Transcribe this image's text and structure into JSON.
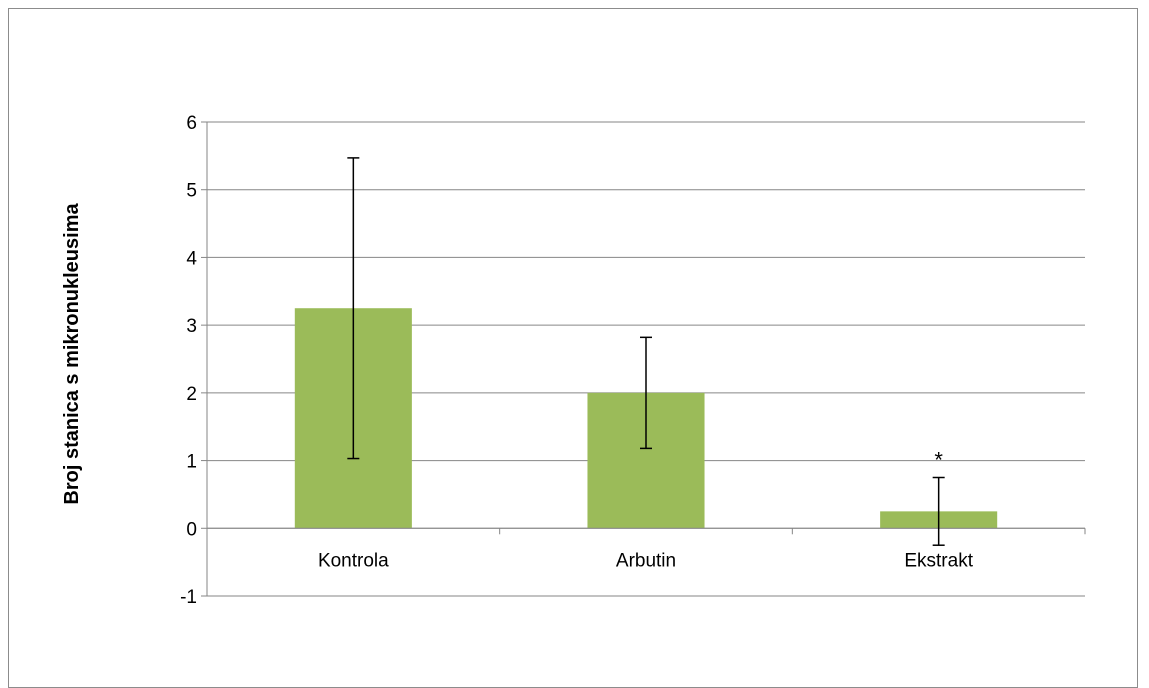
{
  "chart_data": {
    "type": "bar",
    "title": "",
    "xlabel": "",
    "ylabel": "Broj stanica s mikronukleusima",
    "categories": [
      "Kontrola",
      "Arbutin",
      "Ekstrakt"
    ],
    "values": [
      3.25,
      2.0,
      0.25
    ],
    "error_bars": [
      {
        "low": 1.03,
        "high": 5.47
      },
      {
        "low": 1.18,
        "high": 2.82
      },
      {
        "low": -0.25,
        "high": 0.75
      }
    ],
    "annotations": [
      "",
      "",
      "*"
    ],
    "ylim": [
      -1,
      6
    ],
    "yticks": [
      "-1",
      "0",
      "1",
      "2",
      "3",
      "4",
      "5",
      "6"
    ],
    "ytick_values": [
      -1,
      0,
      1,
      2,
      3,
      4,
      5,
      6
    ],
    "grid": true,
    "legend": "none",
    "colors": {
      "bar": "#9bbb59",
      "grid": "#868686",
      "error": "#000000"
    }
  }
}
